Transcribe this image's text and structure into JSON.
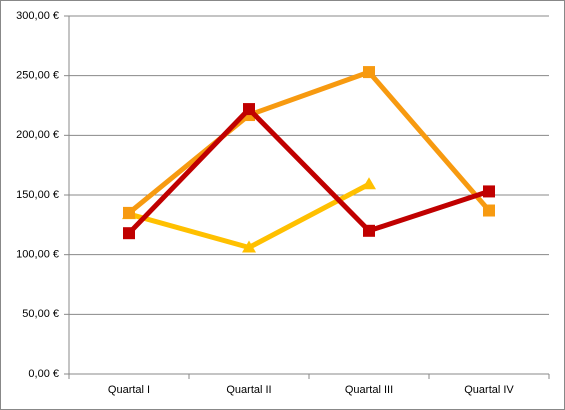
{
  "chart_data": {
    "type": "line",
    "categories": [
      "Quartal I",
      "Quartal II",
      "Quartal III",
      "Quartal IV"
    ],
    "series": [
      {
        "color": "#ffc000",
        "marker": "triangle",
        "values": [
          134,
          106,
          159,
          null
        ]
      },
      {
        "color": "#f79a10",
        "marker": "square",
        "values": [
          135,
          217,
          253,
          137
        ]
      },
      {
        "color": "#c00000",
        "marker": "square",
        "values": [
          118,
          222,
          120,
          153
        ]
      }
    ],
    "ylim": [
      0,
      300
    ],
    "yticks": [
      {
        "value": 0,
        "label": "0,00 €"
      },
      {
        "value": 50,
        "label": "50,00 €"
      },
      {
        "value": 100,
        "label": "100,00 €"
      },
      {
        "value": 150,
        "label": "150,00 €"
      },
      {
        "value": 200,
        "label": "200,00 €"
      },
      {
        "value": 250,
        "label": "250,00 €"
      },
      {
        "value": 300,
        "label": "300,00 €"
      }
    ],
    "grid": true
  }
}
